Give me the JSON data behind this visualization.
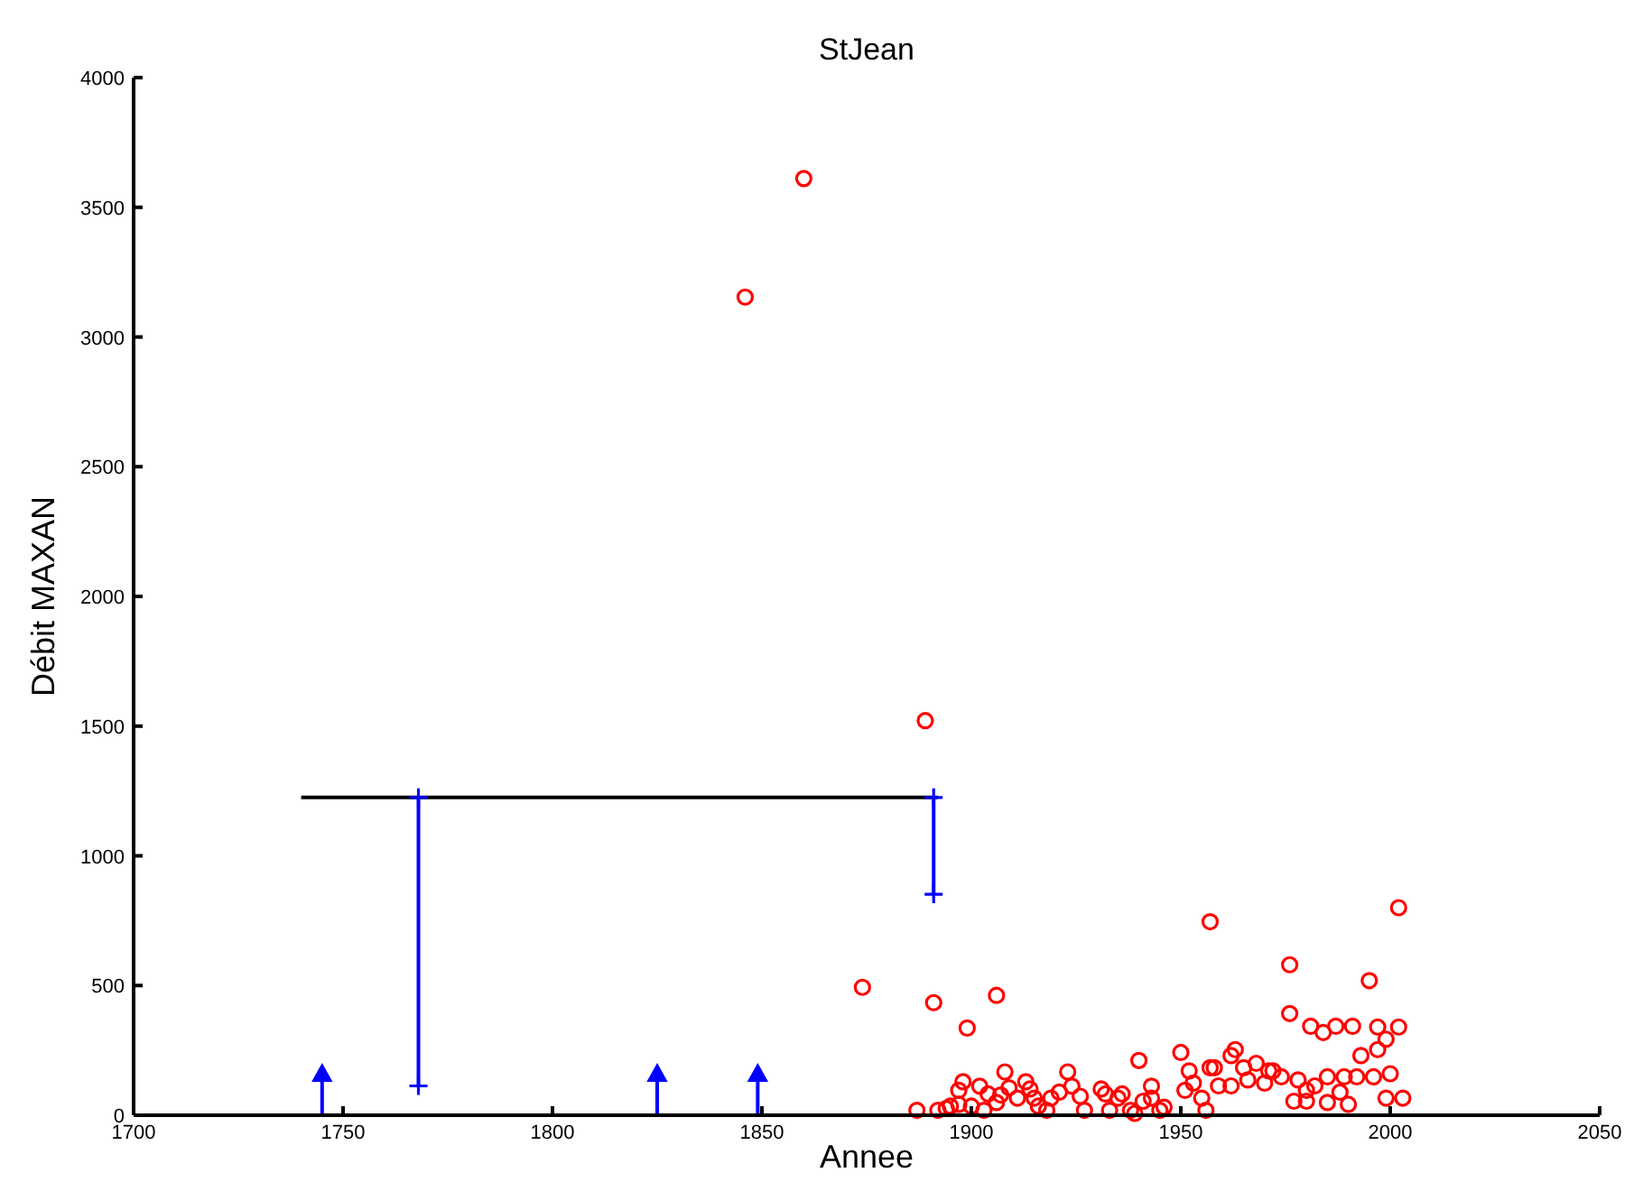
{
  "chart_data": {
    "type": "scatter",
    "title": "StJean",
    "xlabel": "Annee",
    "ylabel": "Débit MAXAN",
    "xlim": [
      1700,
      2050
    ],
    "xticks": [
      1700,
      1750,
      1800,
      1850,
      1900,
      1950,
      2000,
      2050
    ],
    "ylim": [
      0,
      4000
    ],
    "yticks": [
      0,
      500,
      1000,
      1500,
      2000,
      2500,
      3000,
      3500,
      4000
    ],
    "series": [
      {
        "marker": "circle",
        "color": "#ff0000",
        "x": [
          1846,
          1860,
          1889,
          1874,
          1891,
          1906,
          1899,
          1957,
          1887,
          1892,
          1894,
          1895,
          1897,
          1898,
          1897,
          1900,
          1902,
          1903,
          1904,
          1906,
          1907,
          1908,
          1909,
          1911,
          1913,
          1914,
          1915,
          1916,
          1918,
          1919,
          1921,
          1923,
          1924,
          1926,
          1927,
          1931,
          1932,
          1933,
          1935,
          1936,
          1938,
          1939,
          1940,
          1941,
          1943,
          1943,
          1945,
          1946,
          1950,
          1951,
          1952,
          1953,
          1955,
          1956,
          1957,
          2002,
          1976,
          1995,
          1976,
          1981,
          1984,
          1987,
          1991,
          1997,
          2002,
          1999,
          1997,
          1993,
          1963,
          1962,
          1958,
          1965,
          1968,
          1971,
          1974,
          1966,
          1959,
          1962,
          1970,
          1972,
          1978,
          1985,
          1989,
          1992,
          1996,
          2000,
          1980,
          1982,
          1988,
          1977,
          1980,
          1985,
          1990,
          1999,
          2003
        ],
        "values": [
          3154,
          3611,
          1521,
          493,
          434,
          462,
          336,
          746,
          19,
          19,
          26,
          35,
          42,
          129,
          96,
          35,
          112,
          19,
          82,
          49,
          78,
          167,
          106,
          66,
          129,
          101,
          66,
          35,
          19,
          66,
          89,
          167,
          112,
          73,
          19,
          101,
          82,
          19,
          66,
          82,
          19,
          7,
          211,
          54,
          66,
          112,
          19,
          31,
          242,
          96,
          171,
          124,
          66,
          19,
          183,
          800,
          580,
          519,
          392,
          343,
          319,
          343,
          343,
          340,
          340,
          293,
          253,
          230,
          253,
          230,
          183,
          183,
          200,
          171,
          148,
          136,
          113,
          113,
          124,
          171,
          136,
          148,
          148,
          148,
          148,
          160,
          96,
          113,
          89,
          54,
          54,
          49,
          42,
          66,
          66
        ]
      },
      {
        "type": "line",
        "marker": "none",
        "color": "#000000",
        "x": [
          1740,
          1892
        ],
        "values": [
          1225,
          1225
        ]
      },
      {
        "type": "line",
        "marker": "cross",
        "color": "#0000ff",
        "x": [
          1768,
          1768
        ],
        "values": [
          113,
          1225
        ]
      },
      {
        "type": "line",
        "marker": "cross",
        "color": "#0000ff",
        "x": [
          1891,
          1891
        ],
        "values": [
          852,
          1225
        ]
      },
      {
        "type": "scatter",
        "marker": "triangle",
        "color": "#0000ff",
        "x": [
          1745,
          1825,
          1849
        ],
        "values": [
          160,
          160,
          160
        ],
        "errors": [
          [
            0,
            160
          ],
          [
            0,
            160
          ],
          [
            0,
            160
          ]
        ]
      }
    ]
  }
}
